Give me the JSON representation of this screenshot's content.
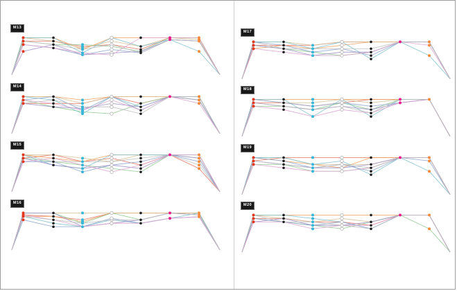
{
  "page": {
    "background": "#ffffff",
    "frame_border_color": "#9c9c9c",
    "divider_color": "#cfcfcf"
  },
  "chart_data": {
    "type": "line",
    "variant": "parallel-coordinates-small-multiples",
    "title": "",
    "xlabel": "",
    "ylabel": "",
    "grid": "off",
    "legend": "none",
    "layout": "2 columns x 4 rows of identical parallel-coordinate panels, lines converge to a point at bottom-left and bottom-right of each panel",
    "stations": [
      0,
      0.055,
      0.2,
      0.34,
      0.48,
      0.62,
      0.76,
      0.9,
      1.0
    ],
    "axis_dot_colors": [
      "#e2371d",
      "#1f1f1f",
      "#38b6d8",
      "open",
      "#1f1f1f",
      "#ea1c8e",
      "#f68a3c"
    ],
    "open_dot_stroke": "#b3b3b3",
    "series_colors": {
      "coral": "#e4705f",
      "orange": "#f09d5b",
      "sand": "#d3bd92",
      "green": "#8fc98f",
      "teal": "#7dbecd",
      "steel": "#8aa3cc",
      "purple": "#9e8fc6",
      "pink": "#dda2ce",
      "gray": "#bcbcbc"
    },
    "value_note": "y values are vertical positions per station, 0=top 105=bottom corner point",
    "panels": [
      {
        "label": "M13",
        "column": "left",
        "row": 1,
        "series": {
          "coral": [
            105,
            17,
            17,
            31,
            26,
            39,
            8,
            8,
            105
          ],
          "orange": [
            105,
            8,
            8,
            39,
            8,
            8,
            8,
            8,
            105
          ],
          "sand": [
            105,
            8,
            17,
            35,
            17,
            31,
            8,
            13,
            105
          ],
          "green": [
            105,
            17,
            26,
            26,
            31,
            44,
            8,
            8,
            105
          ],
          "teal": [
            105,
            8,
            8,
            48,
            8,
            31,
            13,
            44,
            105
          ],
          "steel": [
            105,
            26,
            35,
            53,
            39,
            48,
            13,
            17,
            105
          ],
          "purple": [
            105,
            44,
            26,
            53,
            48,
            44,
            13,
            17,
            105
          ],
          "pink": [
            105,
            26,
            35,
            48,
            53,
            8,
            8,
            8,
            105
          ],
          "gray": [
            105,
            17,
            26,
            39,
            26,
            48,
            13,
            17,
            105
          ]
        }
      },
      {
        "label": "M14",
        "column": "left",
        "row": 2,
        "series": {
          "coral": [
            105,
            26,
            26,
            26,
            8,
            26,
            8,
            8,
            105
          ],
          "orange": [
            105,
            8,
            8,
            17,
            8,
            8,
            8,
            8,
            105
          ],
          "sand": [
            105,
            8,
            8,
            26,
            8,
            8,
            8,
            8,
            105
          ],
          "green": [
            105,
            17,
            35,
            48,
            53,
            26,
            8,
            17,
            105
          ],
          "teal": [
            105,
            8,
            17,
            53,
            8,
            35,
            8,
            8,
            105
          ],
          "steel": [
            105,
            17,
            8,
            44,
            8,
            44,
            8,
            8,
            105
          ],
          "purple": [
            105,
            26,
            35,
            39,
            26,
            35,
            8,
            17,
            105
          ],
          "pink": [
            105,
            17,
            26,
            44,
            17,
            44,
            8,
            26,
            105
          ],
          "gray": [
            105,
            26,
            17,
            35,
            35,
            53,
            8,
            8,
            105
          ]
        }
      },
      {
        "label": "M15",
        "column": "left",
        "row": 3,
        "series": {
          "coral": [
            105,
            17,
            8,
            26,
            17,
            35,
            8,
            44,
            105
          ],
          "orange": [
            105,
            8,
            17,
            26,
            8,
            8,
            8,
            8,
            105
          ],
          "sand": [
            105,
            8,
            8,
            17,
            26,
            8,
            8,
            8,
            105
          ],
          "green": [
            105,
            17,
            26,
            35,
            44,
            53,
            8,
            17,
            105
          ],
          "teal": [
            105,
            8,
            35,
            44,
            8,
            8,
            8,
            8,
            105
          ],
          "steel": [
            105,
            26,
            26,
            53,
            35,
            26,
            8,
            26,
            105
          ],
          "purple": [
            105,
            17,
            35,
            44,
            35,
            44,
            8,
            17,
            105
          ],
          "pink": [
            105,
            26,
            17,
            35,
            53,
            35,
            8,
            8,
            105
          ],
          "gray": [
            105,
            8,
            26,
            26,
            26,
            17,
            8,
            35,
            105
          ]
        }
      },
      {
        "label": "M16",
        "column": "left",
        "row": 4,
        "series": {
          "coral": [
            105,
            13,
            17,
            26,
            8,
            8,
            8,
            8,
            105
          ],
          "orange": [
            105,
            17,
            17,
            31,
            8,
            8,
            8,
            8,
            105
          ],
          "sand": [
            105,
            8,
            8,
            8,
            8,
            8,
            8,
            8,
            105
          ],
          "green": [
            105,
            8,
            8,
            35,
            8,
            26,
            8,
            13,
            105
          ],
          "teal": [
            105,
            17,
            35,
            44,
            26,
            35,
            22,
            8,
            105
          ],
          "steel": [
            105,
            26,
            44,
            44,
            22,
            35,
            22,
            18,
            105
          ],
          "purple": [
            105,
            8,
            8,
            44,
            35,
            26,
            8,
            13,
            105
          ],
          "pink": [
            105,
            13,
            26,
            44,
            35,
            35,
            22,
            18,
            105
          ],
          "gray": [
            105,
            17,
            26,
            35,
            26,
            26,
            8,
            13,
            105
          ]
        }
      },
      {
        "label": "M17",
        "column": "right",
        "row": 1,
        "series": {
          "coral": [
            105,
            17,
            17,
            17,
            8,
            8,
            8,
            8,
            105
          ],
          "orange": [
            105,
            26,
            17,
            26,
            17,
            8,
            8,
            8,
            105
          ],
          "sand": [
            105,
            8,
            8,
            17,
            8,
            8,
            8,
            8,
            105
          ],
          "green": [
            105,
            17,
            26,
            35,
            44,
            35,
            8,
            8,
            105
          ],
          "teal": [
            105,
            8,
            8,
            26,
            8,
            53,
            8,
            44,
            105
          ],
          "steel": [
            105,
            8,
            17,
            35,
            26,
            44,
            8,
            8,
            105
          ],
          "purple": [
            105,
            17,
            26,
            44,
            35,
            35,
            8,
            8,
            105
          ],
          "pink": [
            105,
            26,
            35,
            44,
            44,
            35,
            8,
            17,
            105
          ],
          "gray": [
            105,
            8,
            26,
            26,
            26,
            26,
            8,
            8,
            105
          ]
        }
      },
      {
        "label": "M18",
        "column": "right",
        "row": 2,
        "series": {
          "coral": [
            105,
            17,
            17,
            26,
            17,
            8,
            8,
            8,
            105
          ],
          "orange": [
            105,
            8,
            8,
            8,
            8,
            8,
            8,
            8,
            105
          ],
          "sand": [
            105,
            8,
            17,
            17,
            8,
            17,
            8,
            8,
            105
          ],
          "green": [
            105,
            26,
            26,
            35,
            17,
            35,
            8,
            8,
            105
          ],
          "teal": [
            105,
            8,
            8,
            53,
            8,
            53,
            8,
            8,
            105
          ],
          "steel": [
            105,
            8,
            17,
            26,
            17,
            26,
            17,
            8,
            105
          ],
          "purple": [
            105,
            17,
            26,
            35,
            26,
            35,
            17,
            8,
            105
          ],
          "pink": [
            105,
            26,
            35,
            53,
            35,
            44,
            17,
            8,
            105
          ],
          "gray": [
            105,
            17,
            26,
            35,
            26,
            44,
            8,
            8,
            105
          ]
        }
      },
      {
        "label": "M19",
        "column": "right",
        "row": 3,
        "series": {
          "coral": [
            105,
            17,
            8,
            8,
            8,
            8,
            8,
            8,
            105
          ],
          "orange": [
            105,
            8,
            17,
            26,
            35,
            8,
            8,
            8,
            105
          ],
          "sand": [
            105,
            8,
            8,
            26,
            26,
            26,
            8,
            8,
            105
          ],
          "green": [
            105,
            26,
            26,
            44,
            44,
            35,
            8,
            8,
            105
          ],
          "teal": [
            105,
            8,
            8,
            26,
            17,
            53,
            8,
            44,
            105
          ],
          "steel": [
            105,
            8,
            17,
            35,
            26,
            44,
            8,
            17,
            105
          ],
          "purple": [
            105,
            17,
            26,
            35,
            35,
            26,
            8,
            8,
            105
          ],
          "pink": [
            105,
            26,
            35,
            44,
            44,
            35,
            8,
            8,
            105
          ],
          "gray": [
            105,
            17,
            26,
            35,
            26,
            35,
            8,
            8,
            105
          ]
        }
      },
      {
        "label": "M20",
        "column": "right",
        "row": 4,
        "series": {
          "coral": [
            105,
            17,
            17,
            26,
            26,
            35,
            8,
            8,
            105
          ],
          "orange": [
            105,
            8,
            8,
            8,
            8,
            8,
            8,
            8,
            105
          ],
          "sand": [
            105,
            8,
            17,
            26,
            17,
            26,
            8,
            8,
            105
          ],
          "green": [
            105,
            17,
            26,
            35,
            44,
            26,
            8,
            44,
            105
          ],
          "teal": [
            105,
            8,
            8,
            17,
            26,
            44,
            8,
            8,
            105
          ],
          "steel": [
            105,
            17,
            26,
            35,
            26,
            44,
            8,
            8,
            105
          ],
          "purple": [
            105,
            26,
            17,
            35,
            35,
            26,
            8,
            8,
            105
          ],
          "pink": [
            105,
            26,
            26,
            44,
            35,
            35,
            8,
            8,
            105
          ],
          "gray": [
            105,
            8,
            26,
            26,
            35,
            44,
            8,
            8,
            105
          ]
        }
      }
    ]
  }
}
